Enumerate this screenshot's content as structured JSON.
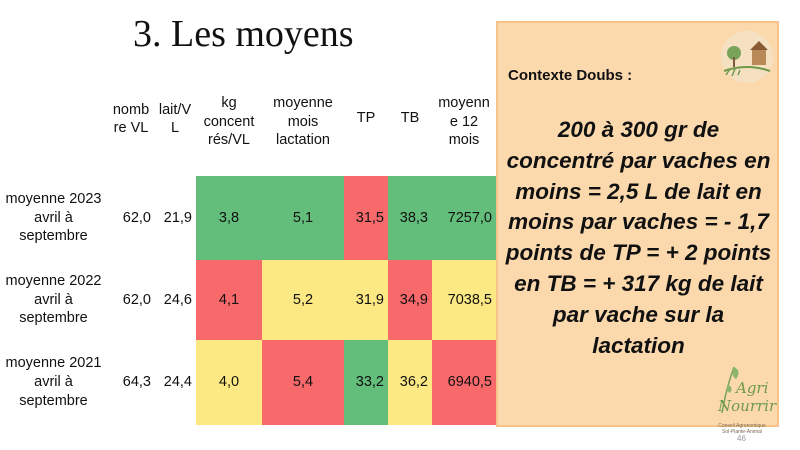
{
  "slide": {
    "title": "3. Les moyens",
    "page_number": "46"
  },
  "table": {
    "headers": {
      "nb_vl": "nomb\nre VL",
      "lait": "lait/V\nL",
      "kg_conc": "kg\nconcent\nrés/VL",
      "moy_mois": "moyenne\nmois\nlactation",
      "tp": "TP",
      "tb": "TB",
      "moy12": "moyenn\ne 12\nmois"
    },
    "rows": [
      {
        "label": "moyenne 2023\navril à\nseptembre",
        "nb_vl": "62,0",
        "lait": "21,9",
        "kg_conc": "3,8",
        "moy_mois": "5,1",
        "tp": "31,5",
        "tb": "38,3",
        "moy12": "7257,0"
      },
      {
        "label": "moyenne 2022\navril à\nseptembre",
        "nb_vl": "62,0",
        "lait": "24,6",
        "kg_conc": "4,1",
        "moy_mois": "5,2",
        "tp": "31,9",
        "tb": "34,9",
        "moy12": "7038,5"
      },
      {
        "label": "moyenne 2021\navril à\nseptembre",
        "nb_vl": "64,3",
        "lait": "24,4",
        "kg_conc": "4,0",
        "moy_mois": "5,4",
        "tp": "33,2",
        "tb": "36,2",
        "moy12": "6940,5"
      }
    ],
    "colors": {
      "green": "#63be7b",
      "red": "#f8696b",
      "yellow": "#fde984"
    }
  },
  "panel": {
    "title": "Contexte Doubs :",
    "text": "200 à 300 gr de concentré par vaches en moins = 2,5 L de lait en moins par vaches = - 1,7 points de TP =  + 2 points en TB = + 317 kg de lait par vache sur la lactation",
    "background": "#fbd9ad",
    "logo": {
      "word1": "Agri",
      "word2": "Nourrir",
      "subtitle": "Conseil Agronomique Sol-Plante-Animal"
    }
  }
}
